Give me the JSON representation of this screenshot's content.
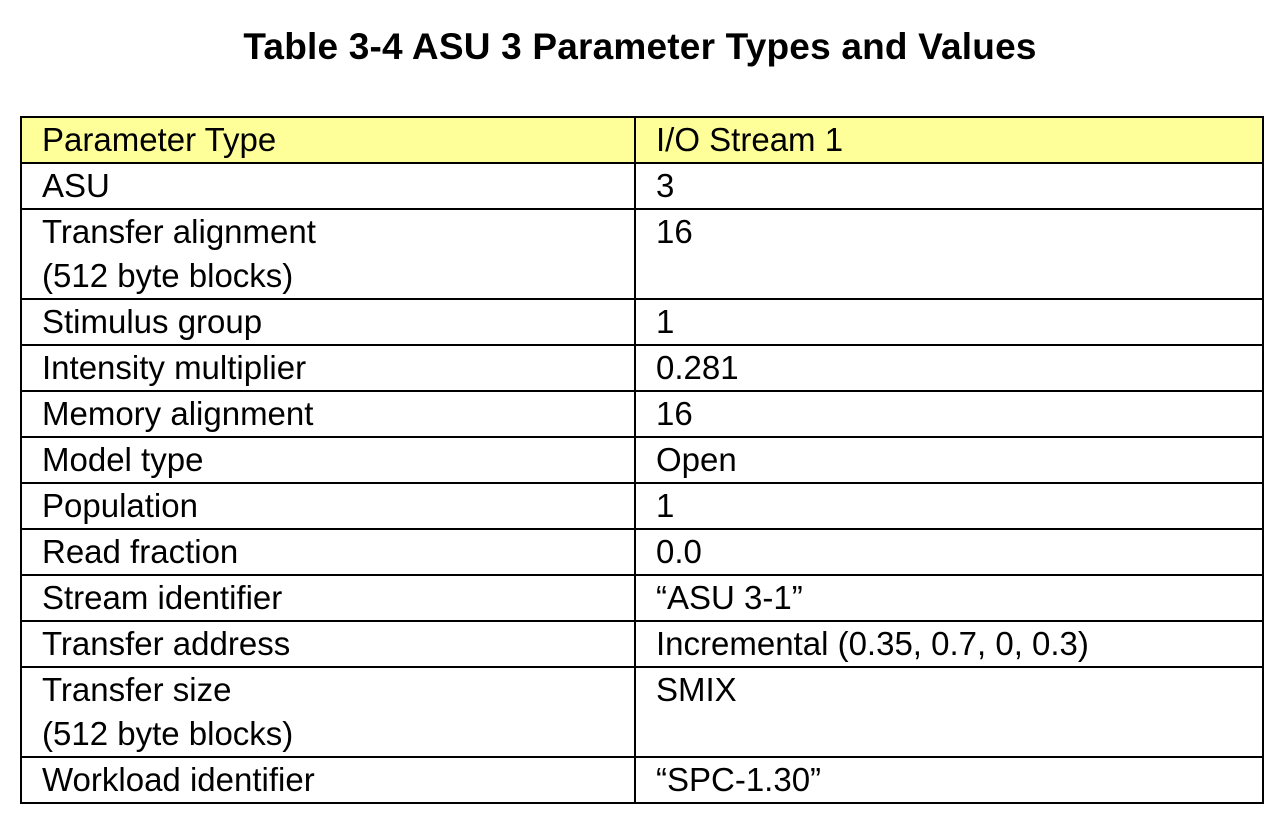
{
  "document": {
    "title": "Table 3-4 ASU 3 Parameter Types and Values"
  },
  "table": {
    "headers": [
      "Parameter Type",
      "I/O Stream 1"
    ],
    "rows": [
      {
        "param": "ASU",
        "param_line2": "",
        "value": "3"
      },
      {
        "param": "Transfer alignment",
        "param_line2": "(512 byte blocks)",
        "value": "16"
      },
      {
        "param": "Stimulus group",
        "param_line2": "",
        "value": "1"
      },
      {
        "param": "Intensity multiplier",
        "param_line2": "",
        "value": "0.281"
      },
      {
        "param": "Memory alignment",
        "param_line2": "",
        "value": "16"
      },
      {
        "param": "Model type",
        "param_line2": "",
        "value": "Open"
      },
      {
        "param": "Population",
        "param_line2": "",
        "value": "1"
      },
      {
        "param": "Read fraction",
        "param_line2": "",
        "value": "0.0"
      },
      {
        "param": "Stream identifier",
        "param_line2": "",
        "value": "“ASU 3-1”"
      },
      {
        "param": "Transfer address",
        "param_line2": "",
        "value": "Incremental (0.35, 0.7, 0, 0.3)"
      },
      {
        "param": "Transfer size",
        "param_line2": "(512 byte blocks)",
        "value": "SMIX"
      },
      {
        "param": "Workload identifier",
        "param_line2": "",
        "value": "“SPC-1.30”"
      }
    ]
  },
  "colors": {
    "header_background": "#ffff99",
    "border": "#000000",
    "text": "#000000"
  }
}
